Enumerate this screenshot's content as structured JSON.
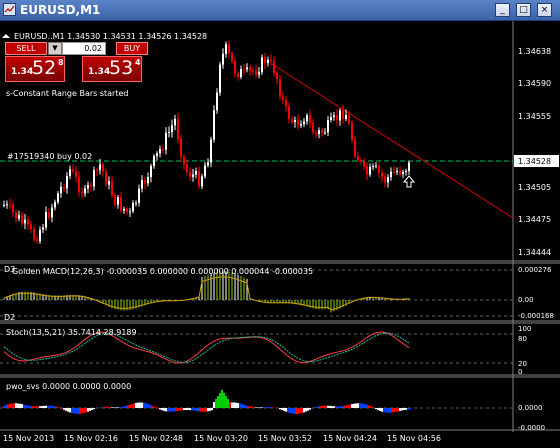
{
  "window": {
    "title": "EURUSD,M1",
    "icon": "chart-window-icon",
    "buttons": {
      "minimize": "_",
      "maximize": "□",
      "close": "×"
    }
  },
  "chart_header": {
    "symbol_line": "EURUSD..M1  1.34530 1.34531 1.34526 1.34528"
  },
  "trade_panel": {
    "sell_label": "SELL",
    "buy_label": "BUY",
    "lot_value": "0.02",
    "sell_price_small": "1.34",
    "sell_price_big": "52",
    "sell_price_sup": "8",
    "buy_price_small": "1.34",
    "buy_price_big": "53",
    "buy_price_sup": "4"
  },
  "status_message": "s-Constant Range Bars started",
  "order_label": "#17519340 buy 0.02",
  "price_axis": {
    "labels": [
      "1.34638",
      "1.34590",
      "1.34555",
      "1.34528",
      "1.34505",
      "1.34475",
      "1.34444"
    ],
    "current_price": "1.34528"
  },
  "macd": {
    "label": "Golden MACD(12,26,3) -0.000035 0.000000 0.000000 0.000044 -0.000035",
    "axis_labels": [
      "0.000276",
      "0.00",
      "-0.000168"
    ],
    "corner_tag": "D3",
    "corner_tag2": "D2"
  },
  "stoch": {
    "label": "Stoch(13,5,21) 35.7414 28.9189",
    "axis_labels": [
      "100",
      "80",
      "20",
      "0"
    ]
  },
  "pwo": {
    "label": "pwo_svs 0.0000 0.0000 0.0000",
    "axis_labels": [
      "0.0000",
      "-0.0000"
    ]
  },
  "time_axis": {
    "labels": [
      "15 Nov 2013",
      "15 Nov 02:16",
      "15 Nov 02:48",
      "15 Nov 03:20",
      "15 Nov 03:52",
      "15 Nov 04:24",
      "15 Nov 04:56"
    ]
  },
  "colors": {
    "background": "#000000",
    "bull": "#ffffff",
    "bear": "#ff0000",
    "trendline": "#d40000",
    "order_line": "#00c060",
    "macd_up": "#ffffff",
    "macd_lime": "#8fd400",
    "stoch_main": "#ff4040",
    "stoch_signal": "#20c0a0",
    "pwo_green": "#00d000",
    "pwo_blue": "#0040ff",
    "pwo_red": "#ff0000"
  }
}
